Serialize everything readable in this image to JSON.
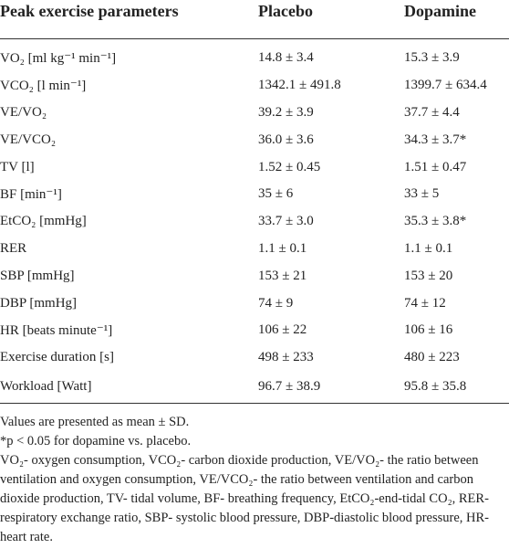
{
  "table": {
    "header": [
      "Peak exercise parameters",
      "Placebo",
      "Dopamine"
    ],
    "rows": [
      [
        "VO₂ [ml kg⁻¹ min⁻¹]",
        "14.8 ± 3.4",
        "15.3 ± 3.9"
      ],
      [
        "VCO₂ [l min⁻¹]",
        "1342.1 ± 491.8",
        "1399.7 ± 634.4"
      ],
      [
        "VE/VO₂",
        "39.2 ± 3.9",
        "37.7 ± 4.4"
      ],
      [
        "VE/VCO₂",
        "36.0 ± 3.6",
        "34.3 ± 3.7*"
      ],
      [
        "TV [l]",
        "1.52 ± 0.45",
        "1.51 ± 0.47"
      ],
      [
        "BF [min⁻¹]",
        "35 ± 6",
        "33 ± 5"
      ],
      [
        "EtCO₂ [mmHg]",
        "33.7 ± 3.0",
        "35.3 ± 3.8*"
      ],
      [
        "RER",
        "1.1 ± 0.1",
        "1.1 ± 0.1"
      ],
      [
        "SBP [mmHg]",
        "153 ± 21",
        "153 ± 20"
      ],
      [
        "DBP [mmHg]",
        "74 ± 9",
        "74 ± 12"
      ],
      [
        "HR [beats minute⁻¹]",
        "106 ± 22",
        "106 ± 16"
      ],
      [
        "Exercise duration [s]",
        "498 ± 233",
        "480 ± 223"
      ],
      [
        "Workload [Watt]",
        "96.7 ± 38.9",
        "95.8 ± 35.8"
      ]
    ]
  },
  "footnotes": [
    "Values are presented as mean ± SD.",
    "*p < 0.05 for dopamine vs. placebo.",
    "VO₂- oxygen consumption, VCO₂- carbon dioxide production, VE/VO₂- the ratio between ventilation and oxygen consumption, VE/VCO₂- the ratio between ventilation and carbon dioxide production, TV- tidal volume, BF- breathing frequency, EtCO₂-end-tidal CO₂, RER- respiratory exchange ratio, SBP- systolic blood pressure, DBP-diastolic blood pressure, HR- heart rate."
  ]
}
